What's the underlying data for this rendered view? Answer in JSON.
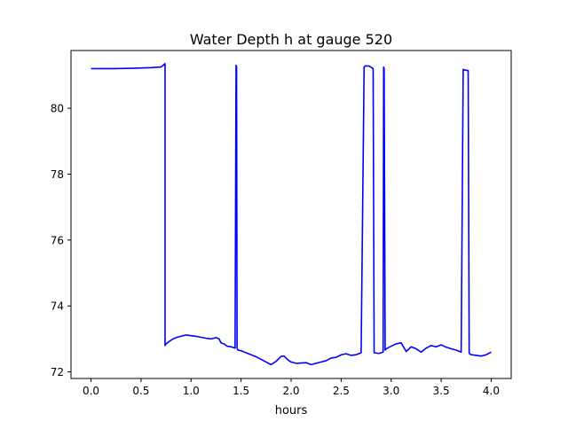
{
  "chart_data": {
    "type": "line",
    "title": "Water Depth h at gauge 520",
    "xlabel": "hours",
    "ylabel": "",
    "xlim": [
      -0.2,
      4.2
    ],
    "ylim": [
      71.8,
      81.75
    ],
    "xticks": [
      0.0,
      0.5,
      1.0,
      1.5,
      2.0,
      2.5,
      3.0,
      3.5,
      4.0
    ],
    "xtick_labels": [
      "0.0",
      "0.5",
      "1.0",
      "1.5",
      "2.0",
      "2.5",
      "3.0",
      "3.5",
      "4.0"
    ],
    "yticks": [
      72,
      74,
      76,
      78,
      80
    ],
    "ytick_labels": [
      "72",
      "74",
      "76",
      "78",
      "80"
    ],
    "grid": false,
    "legend": "none",
    "series": [
      {
        "color": "#0000ff",
        "x": [
          0.0,
          0.2,
          0.4,
          0.6,
          0.7,
          0.74,
          0.74,
          0.75,
          0.78,
          0.82,
          0.86,
          0.9,
          0.95,
          1.0,
          1.05,
          1.1,
          1.15,
          1.2,
          1.25,
          1.28,
          1.3,
          1.33,
          1.36,
          1.4,
          1.44,
          1.45,
          1.455,
          1.46,
          1.47,
          1.47,
          1.5,
          1.55,
          1.6,
          1.65,
          1.7,
          1.75,
          1.8,
          1.85,
          1.9,
          1.93,
          1.97,
          2.0,
          2.05,
          2.1,
          2.15,
          2.2,
          2.25,
          2.3,
          2.35,
          2.4,
          2.45,
          2.5,
          2.55,
          2.6,
          2.65,
          2.7,
          2.73,
          2.74,
          2.78,
          2.82,
          2.83,
          2.88,
          2.92,
          2.925,
          2.93,
          2.94,
          2.95,
          3.0,
          3.05,
          3.1,
          3.15,
          3.2,
          3.25,
          3.3,
          3.35,
          3.4,
          3.45,
          3.5,
          3.55,
          3.6,
          3.65,
          3.7,
          3.72,
          3.73,
          3.77,
          3.78,
          3.8,
          3.85,
          3.9,
          3.95,
          4.0
        ],
        "y": [
          81.2,
          81.2,
          81.21,
          81.23,
          81.25,
          81.35,
          72.8,
          72.85,
          72.92,
          73.0,
          73.05,
          73.08,
          73.12,
          73.1,
          73.08,
          73.05,
          73.02,
          73.0,
          73.04,
          73.0,
          72.88,
          72.85,
          72.78,
          72.76,
          72.72,
          81.3,
          81.25,
          72.72,
          72.66,
          72.66,
          72.64,
          72.58,
          72.52,
          72.46,
          72.38,
          72.3,
          72.22,
          72.32,
          72.47,
          72.48,
          72.36,
          72.3,
          72.26,
          72.27,
          72.28,
          72.22,
          72.26,
          72.3,
          72.34,
          72.42,
          72.44,
          72.52,
          72.55,
          72.5,
          72.52,
          72.58,
          81.25,
          81.28,
          81.28,
          81.2,
          72.58,
          72.56,
          72.6,
          81.25,
          81.2,
          72.66,
          72.7,
          72.78,
          72.85,
          72.88,
          72.62,
          72.76,
          72.7,
          72.6,
          72.72,
          72.8,
          72.76,
          72.82,
          72.75,
          72.7,
          72.66,
          72.6,
          81.18,
          81.16,
          81.14,
          72.56,
          72.52,
          72.5,
          72.48,
          72.52,
          72.6
        ]
      }
    ]
  }
}
